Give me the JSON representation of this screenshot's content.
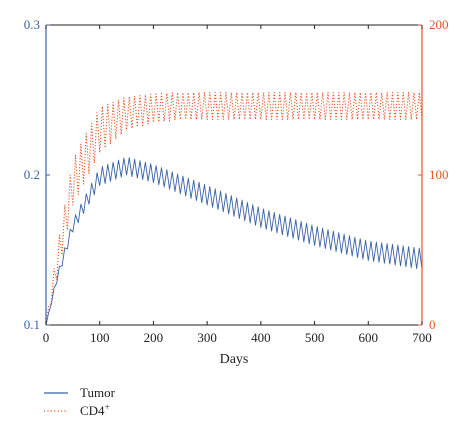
{
  "chart_data": {
    "type": "line",
    "title": "",
    "xlabel": "Days",
    "xlim": [
      0,
      700
    ],
    "x_ticks": [
      "0",
      "100",
      "200",
      "300",
      "400",
      "500",
      "600",
      "700"
    ],
    "y_left": {
      "lim": [
        0.1,
        0.3
      ],
      "ticks": [
        "0.1",
        "0.2",
        "0.3"
      ],
      "color": "#3b62a8"
    },
    "y_right": {
      "lim": [
        0,
        200
      ],
      "ticks": [
        "0",
        "100",
        "200"
      ],
      "color": "#e8542a"
    },
    "grid": false,
    "legend_position": "bottom-left",
    "series": [
      {
        "name": "Tumor",
        "axis": "left",
        "style": "solid",
        "color": "#3b62a8",
        "oscillation_period_days": 10,
        "envelope": {
          "x": [
            0,
            20,
            50,
            100,
            150,
            200,
            300,
            400,
            500,
            600,
            700
          ],
          "lower": [
            0.1,
            0.128,
            0.162,
            0.193,
            0.2,
            0.195,
            0.18,
            0.165,
            0.153,
            0.143,
            0.137
          ],
          "upper": [
            0.1,
            0.133,
            0.17,
            0.205,
            0.212,
            0.207,
            0.193,
            0.178,
            0.166,
            0.156,
            0.151
          ]
        }
      },
      {
        "name": "CD4⁺",
        "axis": "right",
        "style": "dotted",
        "color": "#e8542a",
        "oscillation_period_days": 10,
        "envelope": {
          "x": [
            0,
            20,
            50,
            100,
            150,
            200,
            250,
            300,
            400,
            500,
            600,
            700
          ],
          "lower": [
            0,
            30,
            80,
            115,
            130,
            135,
            137,
            137,
            137,
            137,
            137,
            137
          ],
          "upper": [
            0,
            50,
            110,
            145,
            152,
            154,
            155,
            155,
            155,
            155,
            155,
            155
          ]
        }
      }
    ]
  },
  "legend": {
    "items": [
      {
        "label": "Tumor",
        "superscript": ""
      },
      {
        "label": "CD4",
        "superscript": "+"
      }
    ]
  }
}
